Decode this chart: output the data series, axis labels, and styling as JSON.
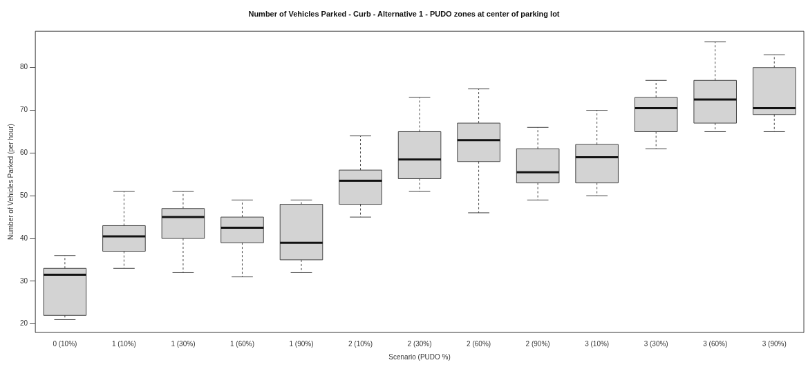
{
  "chart_data": {
    "type": "box",
    "title": "Number of Vehicles Parked - Curb - Alternative 1 - PUDO zones at center of parking lot",
    "xlabel": "Scenario (PUDO %)",
    "ylabel": "Number of Vehicles Parked (per hour)",
    "categories": [
      "0 (10%)",
      "1 (10%)",
      "1 (30%)",
      "1 (60%)",
      "1 (90%)",
      "2 (10%)",
      "2 (30%)",
      "2 (60%)",
      "2 (90%)",
      "3 (10%)",
      "3 (30%)",
      "3 (60%)",
      "3 (90%)"
    ],
    "color": "#d3d3d3",
    "boxes": [
      {
        "low": 21,
        "q1": 22,
        "median": 31.5,
        "q3": 33,
        "high": 36
      },
      {
        "low": 33,
        "q1": 37,
        "median": 40.5,
        "q3": 43,
        "high": 51
      },
      {
        "low": 32,
        "q1": 40,
        "median": 45,
        "q3": 47,
        "high": 51
      },
      {
        "low": 31,
        "q1": 39,
        "median": 42.5,
        "q3": 45,
        "high": 49
      },
      {
        "low": 32,
        "q1": 35,
        "median": 39,
        "q3": 48,
        "high": 49
      },
      {
        "low": 45,
        "q1": 48,
        "median": 53.5,
        "q3": 56,
        "high": 64
      },
      {
        "low": 51,
        "q1": 54,
        "median": 58.5,
        "q3": 65,
        "high": 73
      },
      {
        "low": 46,
        "q1": 58,
        "median": 63,
        "q3": 67,
        "high": 75
      },
      {
        "low": 49,
        "q1": 53,
        "median": 55.5,
        "q3": 61,
        "high": 66
      },
      {
        "low": 50,
        "q1": 53,
        "median": 59,
        "q3": 62,
        "high": 70
      },
      {
        "low": 61,
        "q1": 65,
        "median": 70.5,
        "q3": 73,
        "high": 77
      },
      {
        "low": 65,
        "q1": 67,
        "median": 72.5,
        "q3": 77,
        "high": 86
      },
      {
        "low": 65,
        "q1": 69,
        "median": 70.5,
        "q3": 80,
        "high": 83
      }
    ],
    "ylim": [
      18,
      88.5
    ],
    "yticks": [
      20,
      30,
      40,
      50,
      60,
      70,
      80
    ]
  }
}
